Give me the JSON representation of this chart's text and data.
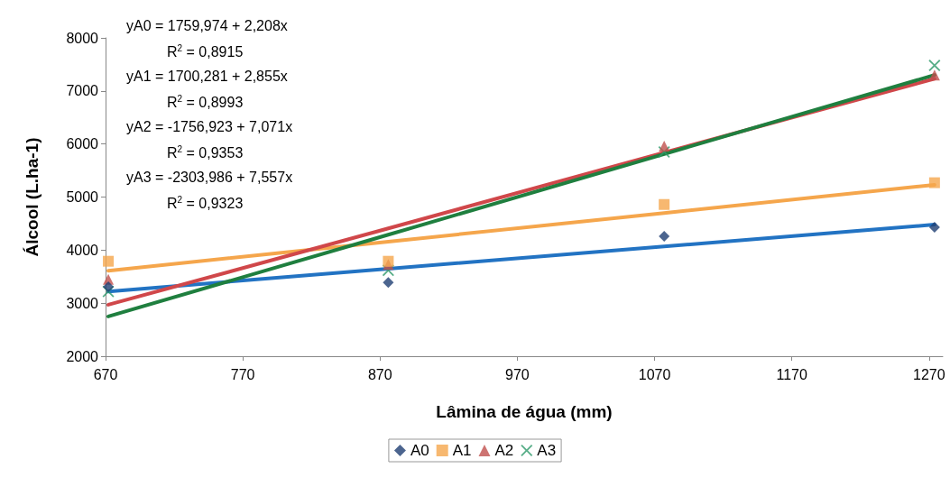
{
  "chart_data": {
    "type": "scatter",
    "xlabel": "Lâmina de água (mm)",
    "ylabel": "Álcool (L.ha-1)",
    "xlim": [
      670,
      1280
    ],
    "xticks": [
      670,
      770,
      870,
      970,
      1070,
      1170,
      1270
    ],
    "ylim": [
      2000,
      8000
    ],
    "yticks": [
      2000,
      3000,
      4000,
      5000,
      6000,
      7000,
      8000
    ],
    "grid": false,
    "legend": "bottom",
    "x": [
      672,
      876,
      1077,
      1274
    ],
    "series": [
      {
        "name": "A0",
        "color": "#1f3f73",
        "marker": "diamond",
        "values": [
          3310,
          3390,
          4260,
          4430
        ]
      },
      {
        "name": "A1",
        "color": "#f5a64c",
        "marker": "square",
        "values": [
          3790,
          3790,
          4860,
          5270
        ]
      },
      {
        "name": "A2",
        "color": "#c0504d",
        "marker": "triangle",
        "values": [
          3450,
          3730,
          5960,
          7300
        ]
      },
      {
        "name": "A3",
        "color": "#2e9a6a",
        "marker": "cross",
        "values": [
          3220,
          3620,
          5850,
          7480
        ]
      },
      {
        "type": "line",
        "color": "#2273c3",
        "values": [
          3220,
          3650,
          4070,
          4480
        ]
      },
      {
        "type": "line",
        "color": "#f5a64c",
        "values": [
          3610,
          4160,
          4700,
          5230
        ]
      },
      {
        "type": "line",
        "color": "#d0474a",
        "values": [
          2970,
          4410,
          5840,
          7230
        ]
      },
      {
        "type": "line",
        "color": "#1f7f3f",
        "values": [
          2750,
          4290,
          5810,
          7300
        ]
      }
    ],
    "annotations": [
      "yA0 = 1759,974 + 2,208x",
      "R$^{2}$ = 0,8915",
      "yA1 = 1700,281 + 2,855x",
      "R$^{2}$ = 0,8993",
      "yA2 = -1756,923 + 7,071x",
      "R$^{2}$ = 0,9353",
      "yA3 = -2303,986 + 7,557x",
      "R$^{2}$ = 0,9323"
    ]
  }
}
